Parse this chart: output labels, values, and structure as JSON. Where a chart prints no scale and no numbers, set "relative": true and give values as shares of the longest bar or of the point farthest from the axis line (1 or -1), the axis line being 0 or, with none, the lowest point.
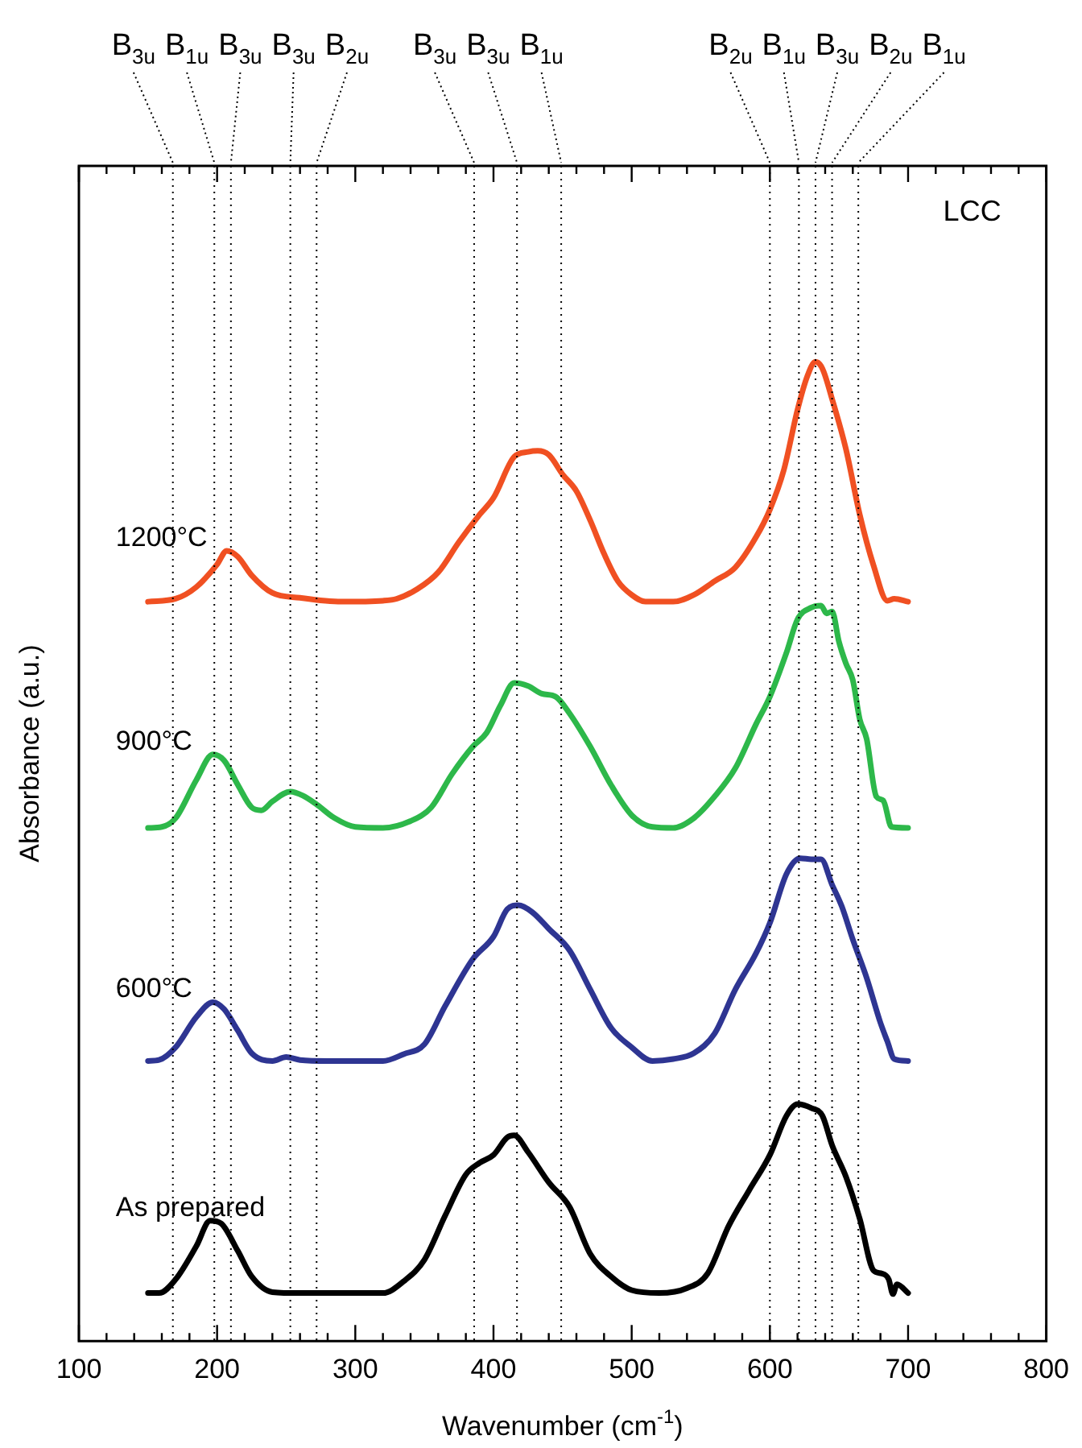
{
  "chart_data": {
    "type": "line",
    "relative": true,
    "xlabel": "Wavenumber (cm$^{-1}$)",
    "ylabel": "Absorbance (a.u.)",
    "annotations": [
      "LCC"
    ],
    "xlim": [
      100,
      800
    ],
    "xticks": [
      100,
      {
        "value": 120,
        "label": null
      },
      {
        "value": 140,
        "label": null
      },
      {
        "value": 160,
        "label": null
      },
      {
        "value": 180,
        "label": null
      },
      200,
      {
        "value": 220,
        "label": null
      },
      {
        "value": 240,
        "label": null
      },
      {
        "value": 260,
        "label": null
      },
      {
        "value": 280,
        "label": null
      },
      300,
      {
        "value": 320,
        "label": null
      },
      {
        "value": 340,
        "label": null
      },
      {
        "value": 360,
        "label": null
      },
      {
        "value": 380,
        "label": null
      },
      400,
      {
        "value": 420,
        "label": null
      },
      {
        "value": 440,
        "label": null
      },
      {
        "value": 460,
        "label": null
      },
      {
        "value": 480,
        "label": null
      },
      500,
      {
        "value": 520,
        "label": null
      },
      {
        "value": 540,
        "label": null
      },
      {
        "value": 560,
        "label": null
      },
      {
        "value": 580,
        "label": null
      },
      600,
      {
        "value": 620,
        "label": null
      },
      {
        "value": 640,
        "label": null
      },
      {
        "value": 660,
        "label": null
      },
      {
        "value": 680,
        "label": null
      },
      700,
      {
        "value": 720,
        "label": null
      },
      {
        "value": 740,
        "label": null
      },
      {
        "value": 760,
        "label": null
      },
      {
        "value": 780,
        "label": null
      },
      800
    ],
    "legend": false,
    "grid": false,
    "marker": "none",
    "line_style": "solid",
    "series": [
      {
        "name": "1200°C",
        "color": "#f05022",
        "x": [
          150,
          170,
          185,
          200,
          207,
          215,
          225,
          240,
          260,
          290,
          320,
          330,
          345,
          360,
          375,
          390,
          400,
          415,
          425,
          432,
          440,
          450,
          460,
          470,
          480,
          490,
          500,
          510,
          530,
          545,
          560,
          575,
          590,
          600,
          610,
          620,
          627,
          633,
          638,
          645,
          655,
          665,
          675,
          685,
          690,
          700
        ],
        "values": [
          0.755,
          0.758,
          0.77,
          0.793,
          0.807,
          0.801,
          0.782,
          0.764,
          0.759,
          0.755,
          0.756,
          0.758,
          0.768,
          0.785,
          0.816,
          0.844,
          0.861,
          0.903,
          0.908,
          0.909,
          0.905,
          0.885,
          0.868,
          0.838,
          0.804,
          0.776,
          0.762,
          0.755,
          0.755,
          0.762,
          0.776,
          0.79,
          0.821,
          0.849,
          0.889,
          0.951,
          0.985,
          1.0,
          0.993,
          0.962,
          0.911,
          0.844,
          0.792,
          0.756,
          0.758,
          0.755
        ]
      },
      {
        "name": "900°C",
        "color": "#2db84a",
        "x": [
          150,
          160,
          170,
          185,
          197,
          205,
          215,
          225,
          232,
          240,
          253,
          262,
          272,
          285,
          300,
          320,
          340,
          355,
          370,
          385,
          395,
          405,
          415,
          425,
          435,
          445,
          455,
          470,
          485,
          500,
          515,
          530,
          545,
          560,
          575,
          590,
          600,
          612,
          620,
          630,
          637,
          641,
          645,
          650,
          655,
          660,
          665,
          670,
          677,
          682,
          688,
          700
        ],
        "values": [
          0.524,
          0.525,
          0.534,
          0.573,
          0.599,
          0.593,
          0.568,
          0.545,
          0.542,
          0.551,
          0.561,
          0.557,
          0.548,
          0.534,
          0.525,
          0.524,
          0.531,
          0.545,
          0.579,
          0.607,
          0.621,
          0.649,
          0.672,
          0.669,
          0.661,
          0.658,
          0.641,
          0.607,
          0.568,
          0.537,
          0.525,
          0.524,
          0.534,
          0.556,
          0.585,
          0.63,
          0.658,
          0.703,
          0.737,
          0.749,
          0.751,
          0.743,
          0.745,
          0.714,
          0.692,
          0.675,
          0.635,
          0.615,
          0.556,
          0.552,
          0.525,
          0.524
        ]
      },
      {
        "name": "600°C",
        "color": "#2e3592",
        "x": [
          150,
          158,
          170,
          185,
          197,
          205,
          215,
          225,
          240,
          250,
          260,
          280,
          320,
          335,
          350,
          365,
          385,
          400,
          410,
          418,
          428,
          440,
          455,
          470,
          485,
          500,
          515,
          530,
          545,
          560,
          575,
          590,
          600,
          612,
          622,
          630,
          637,
          645,
          652,
          660,
          670,
          680,
          685,
          690,
          700
        ],
        "values": [
          0.286,
          0.287,
          0.3,
          0.331,
          0.346,
          0.339,
          0.317,
          0.294,
          0.286,
          0.29,
          0.287,
          0.286,
          0.286,
          0.293,
          0.303,
          0.342,
          0.39,
          0.413,
          0.441,
          0.445,
          0.438,
          0.421,
          0.399,
          0.359,
          0.32,
          0.3,
          0.286,
          0.288,
          0.294,
          0.314,
          0.359,
          0.396,
          0.427,
          0.477,
          0.493,
          0.492,
          0.492,
          0.466,
          0.444,
          0.41,
          0.371,
          0.325,
          0.306,
          0.288,
          0.286
        ]
      },
      {
        "name": "As prepared",
        "color": "#000000",
        "x": [
          150,
          158,
          170,
          185,
          195,
          203,
          215,
          225,
          240,
          260,
          320,
          335,
          350,
          365,
          380,
          390,
          400,
          410,
          415,
          425,
          440,
          455,
          470,
          485,
          500,
          520,
          540,
          555,
          570,
          585,
          600,
          612,
          620,
          630,
          638,
          645,
          655,
          665,
          675,
          681,
          686,
          689,
          692,
          700
        ],
        "values": [
          0.049,
          0.049,
          0.063,
          0.097,
          0.123,
          0.12,
          0.092,
          0.066,
          0.05,
          0.049,
          0.049,
          0.061,
          0.083,
          0.128,
          0.17,
          0.182,
          0.19,
          0.208,
          0.21,
          0.193,
          0.162,
          0.137,
          0.089,
          0.066,
          0.052,
          0.049,
          0.054,
          0.069,
          0.117,
          0.154,
          0.19,
          0.23,
          0.242,
          0.238,
          0.23,
          0.2,
          0.168,
          0.125,
          0.072,
          0.069,
          0.063,
          0.048,
          0.058,
          0.049
        ]
      }
    ],
    "ref_lines": [
      {
        "axis": "x",
        "value": 168,
        "label": "B$_{3u}$",
        "color": "#000000",
        "line_style": "dotted"
      },
      {
        "axis": "x",
        "value": 198,
        "label": "B$_{1u}$",
        "color": "#000000",
        "line_style": "dotted"
      },
      {
        "axis": "x",
        "value": 210,
        "label": "B$_{3u}$",
        "color": "#000000",
        "line_style": "dotted"
      },
      {
        "axis": "x",
        "value": 253,
        "label": "B$_{3u}$",
        "color": "#000000",
        "line_style": "dotted"
      },
      {
        "axis": "x",
        "value": 272,
        "label": "B$_{2u}$",
        "color": "#000000",
        "line_style": "dotted"
      },
      {
        "axis": "x",
        "value": 386,
        "label": "B$_{3u}$",
        "color": "#000000",
        "line_style": "dotted"
      },
      {
        "axis": "x",
        "value": 417,
        "label": "B$_{3u}$",
        "color": "#000000",
        "line_style": "dotted"
      },
      {
        "axis": "x",
        "value": 449,
        "label": "B$_{1u}$",
        "color": "#000000",
        "line_style": "dotted"
      },
      {
        "axis": "x",
        "value": 600,
        "label": "B$_{2u}$",
        "color": "#000000",
        "line_style": "dotted"
      },
      {
        "axis": "x",
        "value": 621,
        "label": "B$_{1u}$",
        "color": "#000000",
        "line_style": "dotted"
      },
      {
        "axis": "x",
        "value": 633,
        "label": "B$_{3u}$",
        "color": "#000000",
        "line_style": "dotted"
      },
      {
        "axis": "x",
        "value": 645,
        "label": "B$_{2u}$",
        "color": "#000000",
        "line_style": "dotted"
      },
      {
        "axis": "x",
        "value": 664,
        "label": "B$_{1u}$",
        "color": "#000000",
        "line_style": "dotted"
      }
    ]
  }
}
